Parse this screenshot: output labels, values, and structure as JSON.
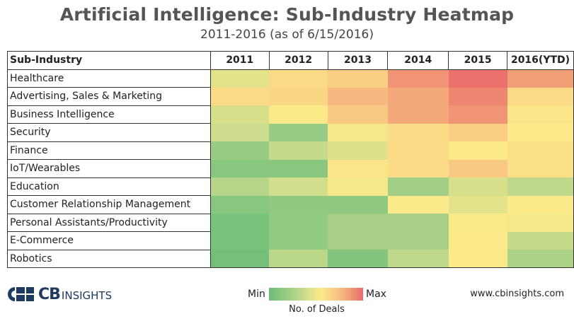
{
  "title": "Artificial Intelligence: Sub-Industry Heatmap",
  "subtitle": "2011-2016 (as of 6/15/2016)",
  "chart_data": {
    "type": "heatmap",
    "title": "Artificial Intelligence: Sub-Industry Heatmap",
    "subtitle": "2011-2016 (as of 6/15/2016)",
    "row_header": "Sub-Industry",
    "columns": [
      "2011",
      "2012",
      "2013",
      "2014",
      "2015",
      "2016(YTD)"
    ],
    "rows": [
      "Healthcare",
      "Advertising, Sales & Marketing",
      "Business Intelligence",
      "Security",
      "Finance",
      "IoT/Wearables",
      "Education",
      "Customer Relationship Management",
      "Personal Assistants/Productivity",
      "E-Commerce",
      "Robotics"
    ],
    "values": [
      [
        0.46,
        0.62,
        0.68,
        0.88,
        0.98,
        0.85
      ],
      [
        0.62,
        0.64,
        0.77,
        0.82,
        0.92,
        0.62
      ],
      [
        0.42,
        0.54,
        0.7,
        0.82,
        0.88,
        0.58
      ],
      [
        0.38,
        0.18,
        0.52,
        0.62,
        0.68,
        0.56
      ],
      [
        0.18,
        0.36,
        0.44,
        0.62,
        0.56,
        0.6
      ],
      [
        0.12,
        0.12,
        0.58,
        0.62,
        0.7,
        0.6
      ],
      [
        0.3,
        0.4,
        0.52,
        0.22,
        0.42,
        0.34
      ],
      [
        0.12,
        0.14,
        0.14,
        0.54,
        0.46,
        0.54
      ],
      [
        0.06,
        0.16,
        0.24,
        0.24,
        0.54,
        0.52
      ],
      [
        0.06,
        0.16,
        0.24,
        0.24,
        0.56,
        0.36
      ],
      [
        0.04,
        0.32,
        0.1,
        0.34,
        0.56,
        0.26
      ]
    ],
    "scale": {
      "min_label": "Min",
      "max_label": "Max",
      "caption": "No. of Deals"
    },
    "colors": {
      "min": "#6abd79",
      "low": "#c3d98c",
      "mid": "#fdeb8a",
      "high": "#f6b77e",
      "max": "#ea6a6a"
    }
  },
  "footer": {
    "logo_cb": "CB",
    "logo_insights": "INSIGHTS",
    "website": "www.cbinsights.com"
  }
}
